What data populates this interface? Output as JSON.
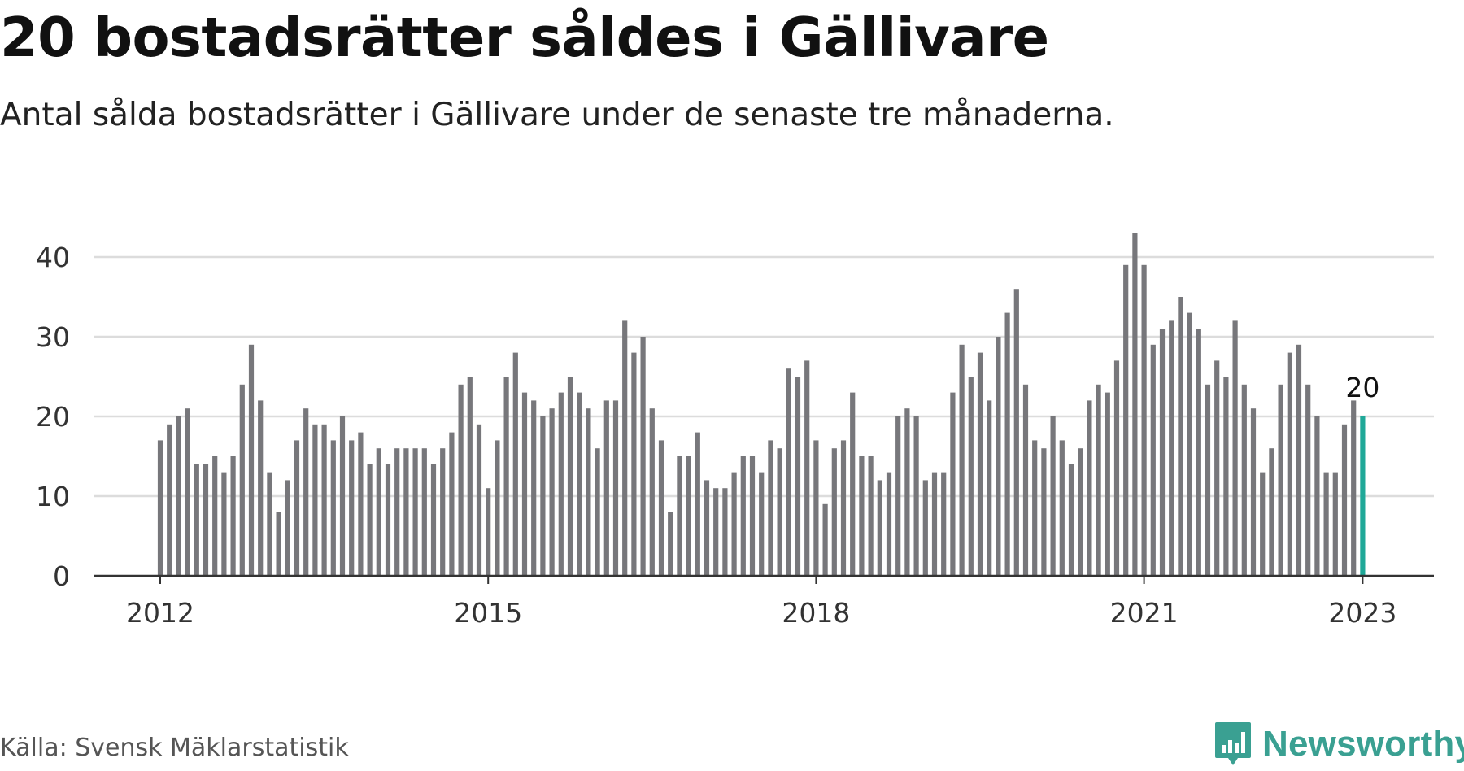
{
  "title": "20 bostadsrätter såldes i Gällivare",
  "subtitle": "Antal sålda bostadsrätter i Gällivare under de senaste tre månaderna.",
  "source": "Källa: Svensk Mäklarstatistik",
  "brand": {
    "name": "Newsworthy",
    "icon": "newsworthy-logo-icon"
  },
  "colors": {
    "bar": "#77777b",
    "highlight": "#1fa898",
    "grid": "#dcdcdc",
    "axis": "#333333",
    "text": "#333333",
    "brand": "#3aa092"
  },
  "chart_data": {
    "type": "bar",
    "title": "20 bostadsrätter såldes i Gällivare",
    "xlabel": "",
    "ylabel": "",
    "ylim": [
      0,
      43
    ],
    "yticks": [
      0,
      10,
      20,
      30,
      40
    ],
    "grid": true,
    "start": "2012-01",
    "x_tick_labels": [
      {
        "label": "2012",
        "index": 0
      },
      {
        "label": "2015",
        "index": 36
      },
      {
        "label": "2018",
        "index": 72
      },
      {
        "label": "2021",
        "index": 108
      },
      {
        "label": "2023",
        "index": 132
      }
    ],
    "highlight_index": 132,
    "highlight_label": "20",
    "values": [
      17,
      19,
      20,
      21,
      14,
      14,
      15,
      13,
      15,
      24,
      29,
      22,
      13,
      8,
      12,
      17,
      21,
      19,
      19,
      17,
      20,
      17,
      18,
      14,
      16,
      14,
      16,
      16,
      16,
      16,
      14,
      16,
      18,
      24,
      25,
      19,
      11,
      17,
      25,
      28,
      23,
      22,
      20,
      21,
      23,
      25,
      23,
      21,
      16,
      22,
      22,
      32,
      28,
      30,
      21,
      17,
      8,
      15,
      15,
      18,
      12,
      11,
      11,
      13,
      15,
      15,
      13,
      17,
      16,
      26,
      25,
      27,
      17,
      9,
      16,
      17,
      23,
      15,
      15,
      12,
      13,
      20,
      21,
      20,
      12,
      13,
      13,
      23,
      29,
      25,
      28,
      22,
      30,
      33,
      36,
      24,
      17,
      16,
      20,
      17,
      14,
      16,
      22,
      24,
      23,
      27,
      39,
      43,
      39,
      29,
      31,
      32,
      35,
      33,
      31,
      24,
      27,
      25,
      32,
      24,
      21,
      13,
      16,
      24,
      28,
      29,
      24,
      20,
      13,
      13,
      19,
      22,
      20
    ]
  }
}
